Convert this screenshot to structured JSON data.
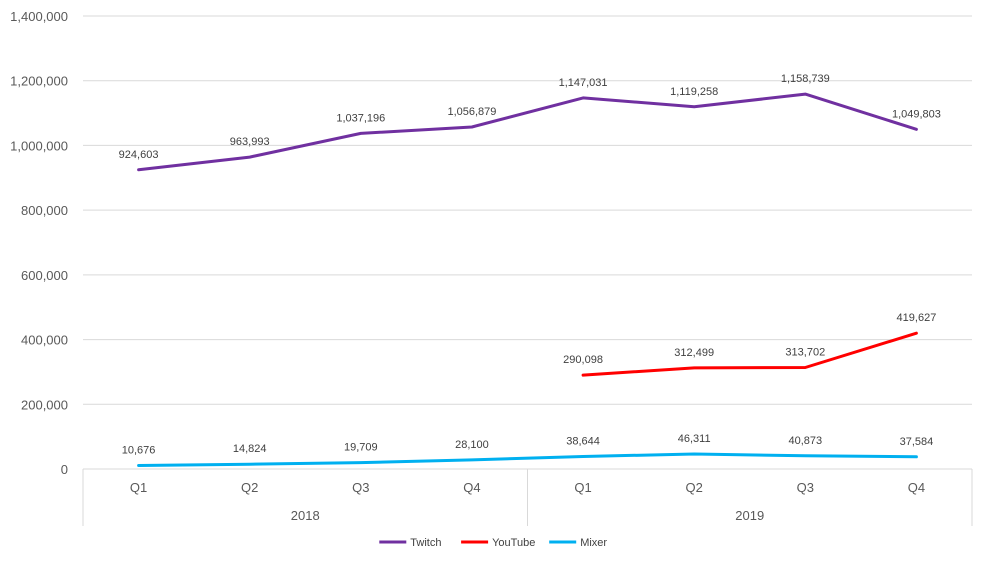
{
  "chart_data": {
    "type": "line",
    "title": "",
    "xlabel": "",
    "ylabel": "",
    "ylim": [
      0,
      1400000
    ],
    "yticks": [
      0,
      200000,
      400000,
      600000,
      800000,
      1000000,
      1200000,
      1400000
    ],
    "ytick_labels": [
      "0",
      "200,000",
      "400,000",
      "600,000",
      "800,000",
      "1,000,000",
      "1,200,000",
      "1,400,000"
    ],
    "grid": true,
    "legend_position": "bottom",
    "groups": [
      {
        "label": "2018",
        "categories": [
          "Q1",
          "Q2",
          "Q3",
          "Q4"
        ]
      },
      {
        "label": "2019",
        "categories": [
          "Q1",
          "Q2",
          "Q3",
          "Q4"
        ]
      }
    ],
    "categories": [
      "Q1",
      "Q2",
      "Q3",
      "Q4",
      "Q1",
      "Q2",
      "Q3",
      "Q4"
    ],
    "series": [
      {
        "name": "Twitch",
        "color": "#7030a0",
        "values": [
          924603,
          963993,
          1037196,
          1056879,
          1147031,
          1119258,
          1158739,
          1049803
        ],
        "labels": [
          "924,603",
          "963,993",
          "1,037,196",
          "1,056,879",
          "1,147,031",
          "1,119,258",
          "1,158,739",
          "1,049,803"
        ]
      },
      {
        "name": "YouTube",
        "color": "#ff0000",
        "values": [
          null,
          null,
          null,
          null,
          290098,
          312499,
          313702,
          419627
        ],
        "labels": [
          null,
          null,
          null,
          null,
          "290,098",
          "312,499",
          "313,702",
          "419,627"
        ]
      },
      {
        "name": "Mixer",
        "color": "#00b0f0",
        "values": [
          10676,
          14824,
          19709,
          28100,
          38644,
          46311,
          40873,
          37584
        ],
        "labels": [
          "10,676",
          "14,824",
          "19,709",
          "28,100",
          "38,644",
          "46,311",
          "40,873",
          "37,584"
        ]
      }
    ]
  }
}
